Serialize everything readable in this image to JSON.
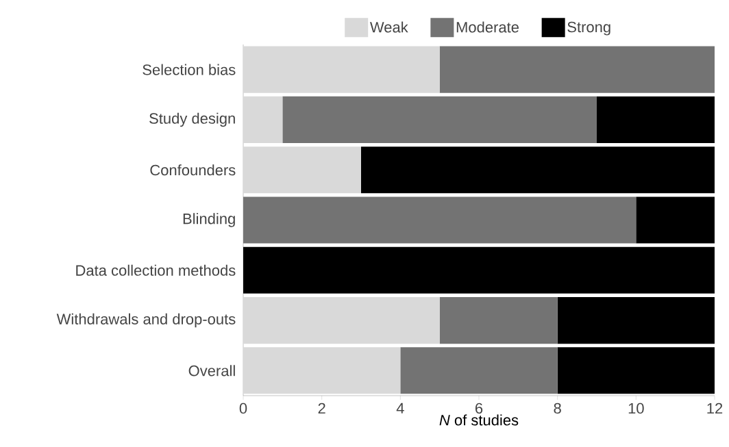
{
  "chart_data": {
    "type": "bar",
    "orientation": "horizontal",
    "stacked": true,
    "legend": "top",
    "xlabel": "*N* of studies",
    "categories": [
      "Selection bias",
      "Study design",
      "Confounders",
      "Blinding",
      "Data collection methods",
      "Withdrawals and drop-outs",
      "Overall"
    ],
    "series": [
      {
        "name": "Weak",
        "color": "#d9d9d9",
        "values": [
          5,
          1,
          3,
          0,
          0,
          5,
          4
        ]
      },
      {
        "name": "Moderate",
        "color": "#737373",
        "values": [
          7,
          8,
          0,
          10,
          0,
          3,
          4
        ]
      },
      {
        "name": "Strong",
        "color": "#000000",
        "values": [
          0,
          3,
          9,
          2,
          12,
          4,
          4
        ]
      }
    ],
    "xlim": [
      0,
      12
    ],
    "xticks": [
      0,
      2,
      4,
      6,
      8,
      10,
      12
    ]
  }
}
